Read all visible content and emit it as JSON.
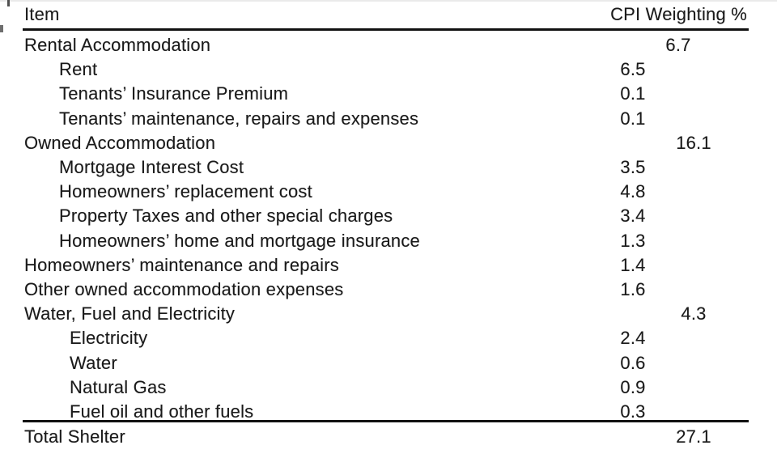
{
  "colors": {
    "text": "#1a1a1a",
    "rule": "#111111",
    "background": "#ffffff"
  },
  "table": {
    "header": {
      "item": "Item",
      "weight": "CPI Weighting %"
    },
    "rows": [
      {
        "label": "Rental Accommodation",
        "value": "6.7",
        "indent": 0,
        "col": "group"
      },
      {
        "label": "Rent",
        "value": "6.5",
        "indent": 1,
        "col": "sub"
      },
      {
        "label": "Tenants’ Insurance Premium",
        "value": "0.1",
        "indent": 1,
        "col": "sub"
      },
      {
        "label": "Tenants’ maintenance, repairs and expenses",
        "value": "0.1",
        "indent": 1,
        "col": "sub"
      },
      {
        "label": "Owned Accommodation",
        "value": "16.1",
        "indent": 0,
        "col": "group"
      },
      {
        "label": "Mortgage Interest Cost",
        "value": "3.5",
        "indent": 1,
        "col": "sub"
      },
      {
        "label": "Homeowners’ replacement cost",
        "value": "4.8",
        "indent": 1,
        "col": "sub"
      },
      {
        "label": "Property Taxes and other special charges",
        "value": "3.4",
        "indent": 1,
        "col": "sub"
      },
      {
        "label": "Homeowners’ home and mortgage insurance",
        "value": "1.3",
        "indent": 1,
        "col": "sub"
      },
      {
        "label": "Homeowners’ maintenance and repairs",
        "value": "1.4",
        "indent": 0,
        "col": "sub"
      },
      {
        "label": "Other owned accommodation expenses",
        "value": "1.6",
        "indent": 0,
        "col": "sub"
      },
      {
        "label": "Water, Fuel and Electricity",
        "value": "4.3",
        "indent": 0,
        "col": "group"
      },
      {
        "label": "Electricity",
        "value": "2.4",
        "indent": 2,
        "col": "sub"
      },
      {
        "label": "Water",
        "value": "0.6",
        "indent": 2,
        "col": "sub"
      },
      {
        "label": "Natural Gas",
        "value": "0.9",
        "indent": 2,
        "col": "sub"
      },
      {
        "label": "Fuel oil and other fuels",
        "value": "0.3",
        "indent": 2,
        "col": "sub"
      }
    ],
    "footer": {
      "label": "Total Shelter",
      "value": "27.1"
    }
  }
}
